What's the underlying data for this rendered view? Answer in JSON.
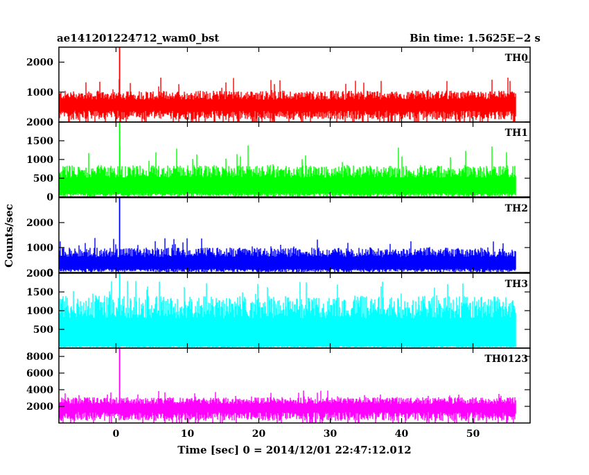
{
  "header": {
    "left": "ae141201224712_wam0_bst",
    "right": "Bin time: 1.5625E−2 s"
  },
  "chart_data": {
    "type": "line",
    "title": "ae141201224712_wam0_bst",
    "subtitle": "Bin time: 1.5625E−2 s",
    "xlabel": "Time [sec] 0 = 2014/12/01 22:47:12.012",
    "ylabel": "Counts/sec",
    "xlim": [
      -8,
      58
    ],
    "x_ticks": [
      0,
      10,
      20,
      30,
      40,
      50
    ],
    "x_range_data": [
      -8,
      56
    ],
    "grid": false,
    "panels": [
      {
        "name": "TH0",
        "color": "#ff0000",
        "ylim": [
          0,
          2500
        ],
        "y_ticks": [
          0,
          1000,
          2000
        ],
        "baseline": 380,
        "typical_peak": 1050,
        "max_peak": 1500,
        "spike": {
          "x": 0.5,
          "y": 2500
        }
      },
      {
        "name": "TH1",
        "color": "#00ff00",
        "ylim": [
          0,
          2000
        ],
        "y_ticks": [
          0,
          500,
          1000,
          1500,
          2000
        ],
        "baseline": 100,
        "typical_peak": 850,
        "max_peak": 1400,
        "spike": {
          "x": 0.5,
          "y": 2000
        }
      },
      {
        "name": "TH2",
        "color": "#0000ff",
        "ylim": [
          0,
          3000
        ],
        "y_ticks": [
          0,
          1000,
          2000
        ],
        "baseline": 150,
        "typical_peak": 1000,
        "max_peak": 1400,
        "spike": {
          "x": 0.5,
          "y": 3000
        }
      },
      {
        "name": "TH3",
        "color": "#00ffff",
        "ylim": [
          0,
          2000
        ],
        "y_ticks": [
          500,
          1000,
          1500,
          2000
        ],
        "baseline": 60,
        "typical_peak": 1400,
        "max_peak": 1800,
        "spike": {
          "x": 0.5,
          "y": 2000
        }
      },
      {
        "name": "TH0123",
        "color": "#ff00ff",
        "ylim": [
          0,
          9000
        ],
        "y_ticks": [
          2000,
          4000,
          6000,
          8000
        ],
        "baseline": 1300,
        "typical_peak": 3100,
        "max_peak": 3900,
        "spike": {
          "x": 0.5,
          "y": 9000
        }
      }
    ]
  }
}
